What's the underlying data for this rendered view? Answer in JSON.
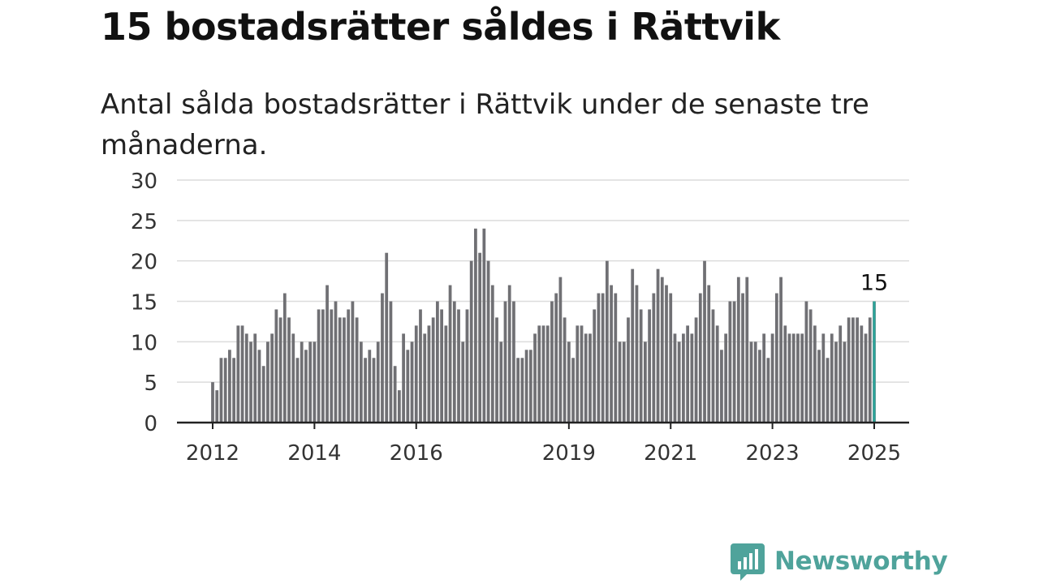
{
  "header": {
    "title": "15 bostadsrätter såldes i Rättvik",
    "subtitle": "Antal sålda bostadsrätter i Rättvik under de senaste tre månaderna."
  },
  "brand": {
    "name": "Newsworthy",
    "icon": "newsworthy-logo-icon",
    "color": "#4fa39b"
  },
  "chart_data": {
    "type": "bar",
    "title": "15 bostadsrätter såldes i Rättvik",
    "subtitle": "Antal sålda bostadsrätter i Rättvik under de senaste tre månaderna.",
    "xlabel": "",
    "ylabel": "",
    "ylim": [
      0,
      30
    ],
    "yticks": [
      0,
      5,
      10,
      15,
      20,
      25,
      30
    ],
    "xlim": [
      "2012-01",
      "2025-01"
    ],
    "x_tick_labels": [
      "2012",
      "2014",
      "2016",
      "2019",
      "2021",
      "2023",
      "2025"
    ],
    "grid": true,
    "bar_color": "#707074",
    "highlight_color": "#2aa59a",
    "start_month": "2012-01",
    "values": [
      5,
      4,
      8,
      8,
      9,
      8,
      12,
      12,
      11,
      10,
      11,
      9,
      7,
      10,
      11,
      14,
      13,
      16,
      13,
      11,
      8,
      10,
      9,
      10,
      10,
      14,
      14,
      17,
      14,
      15,
      13,
      13,
      14,
      15,
      13,
      10,
      8,
      9,
      8,
      10,
      16,
      21,
      15,
      7,
      4,
      11,
      9,
      10,
      12,
      14,
      11,
      12,
      13,
      15,
      14,
      12,
      17,
      15,
      14,
      10,
      14,
      20,
      24,
      21,
      24,
      20,
      17,
      13,
      10,
      15,
      17,
      15,
      8,
      8,
      9,
      9,
      11,
      12,
      12,
      12,
      15,
      16,
      18,
      13,
      10,
      8,
      12,
      12,
      11,
      11,
      14,
      16,
      16,
      20,
      17,
      16,
      10,
      10,
      13,
      19,
      17,
      14,
      10,
      14,
      16,
      19,
      18,
      17,
      16,
      11,
      10,
      11,
      12,
      11,
      13,
      16,
      20,
      17,
      14,
      12,
      9,
      11,
      15,
      15,
      18,
      16,
      18,
      10,
      10,
      9,
      11,
      8,
      11,
      16,
      18,
      12,
      11,
      11,
      11,
      11,
      15,
      14,
      12,
      9,
      11,
      8,
      11,
      10,
      12,
      10,
      13,
      13,
      13,
      12,
      11,
      13,
      15
    ],
    "highlight": {
      "label": "15",
      "value": 15,
      "month": "2025-01"
    }
  }
}
